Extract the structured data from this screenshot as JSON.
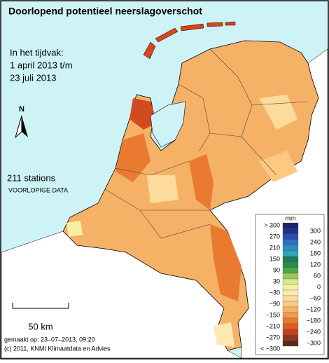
{
  "title": "Doorlopend potentieel neerslagoverschot",
  "period": {
    "heading": "In het tijdvak:",
    "from": "1 april 2013 t/m",
    "to": "23 juli 2013"
  },
  "north_label": "N",
  "stations": "211 stations",
  "status": "VOORLOPIGE DATA",
  "scale_label": "50 km",
  "made_on": "gemaakt op: 23–07–2013, 09:20",
  "copyright": "(c) 2011, KNMI Klimaatdata en Advies",
  "legend": {
    "unit": "mm",
    "left_labels": [
      "> 300",
      "270",
      "210",
      "150",
      "90",
      "30",
      "−30",
      "−90",
      "−150",
      "−210",
      "−270",
      "< −300"
    ],
    "right_labels": [
      "300",
      "240",
      "180",
      "120",
      "60",
      "0",
      "−60",
      "−120",
      "−180",
      "−240",
      "−300"
    ],
    "colors": [
      "#1b2466",
      "#22318f",
      "#2a4fb0",
      "#2f6fc2",
      "#2e8dc2",
      "#2ba8b8",
      "#1a7a5a",
      "#2e8c45",
      "#4ba84b",
      "#9cc85a",
      "#d8e68c",
      "#f6f1a2",
      "#fde8b4",
      "#fddb9d",
      "#fbc980",
      "#f7b262",
      "#f09a4a",
      "#e97a30",
      "#e05b1f",
      "#c8411a",
      "#8b3a20",
      "#5a2a18"
    ]
  }
}
